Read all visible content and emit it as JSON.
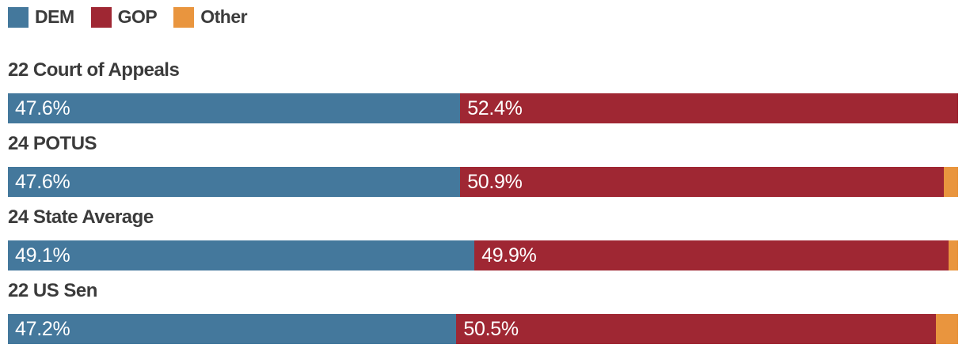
{
  "styles": {
    "background": "#FFFFFF",
    "text_color": "#3B3B3B",
    "bar_label_color": "#FFFFFF"
  },
  "chart_data": {
    "type": "bar",
    "orientation": "horizontal",
    "stacked": true,
    "unit": "%",
    "axis_range": [
      0,
      100
    ],
    "grid": false,
    "legend": {
      "position": "top",
      "entries": [
        {
          "name": "DEM",
          "color": "#44789C"
        },
        {
          "name": "GOP",
          "color": "#9F2733"
        },
        {
          "name": "Other",
          "color": "#E9953E"
        }
      ]
    },
    "categories": [
      "22 Court of Appeals",
      "24 POTUS",
      "24 State Average",
      "22 US Sen"
    ],
    "series": [
      {
        "name": "DEM",
        "color": "#44789C",
        "values": [
          47.6,
          47.6,
          49.1,
          47.2
        ],
        "labels": [
          "47.6%",
          "47.6%",
          "49.1%",
          "47.2%"
        ]
      },
      {
        "name": "GOP",
        "color": "#9F2733",
        "values": [
          52.4,
          50.9,
          49.9,
          50.5
        ],
        "labels": [
          "52.4%",
          "50.9%",
          "49.9%",
          "50.5%"
        ]
      },
      {
        "name": "Other",
        "color": "#E9953E",
        "values": [
          0,
          1.5,
          1.0,
          2.3
        ],
        "labels": [
          "",
          "",
          "",
          ""
        ]
      }
    ]
  }
}
